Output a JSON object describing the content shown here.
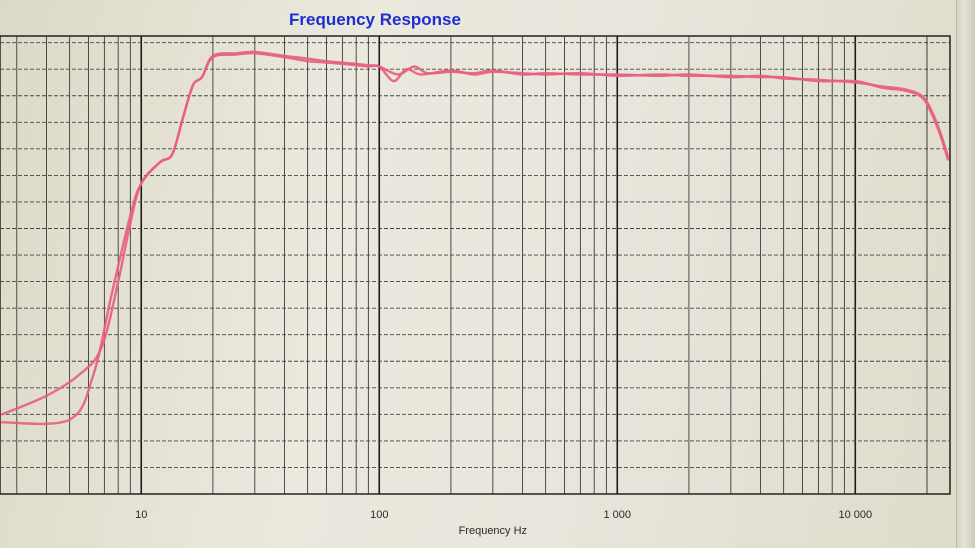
{
  "title": "Frequency Response",
  "colors": {
    "curve": "#e8607e",
    "title": "#1c2fd0",
    "grid": "#333333"
  },
  "chart_data": {
    "type": "line",
    "title": "Frequency Response",
    "xlabel": "Frequency Hz",
    "ylabel": "",
    "x_scale": "log",
    "xlim": [
      2.55,
      25000
    ],
    "ylim": [
      -16,
      1.25
    ],
    "y_unit_note": "unlabeled axis; y values are grid divisions relative to the top gridline",
    "x_tick_labels": [
      "10",
      "100",
      "1 000",
      "10 000"
    ],
    "x_tick_values": [
      10,
      100,
      1000,
      10000
    ],
    "grid": true,
    "legend": "none",
    "series": [
      {
        "values": [
          [
            2.6,
            -13.3
          ],
          [
            5,
            -13.2
          ],
          [
            6.3,
            -11.5
          ],
          [
            7.5,
            -8.5
          ],
          [
            9,
            -5.5
          ],
          [
            10,
            -4.3
          ],
          [
            12,
            -3.5
          ],
          [
            13.5,
            -3.2
          ],
          [
            15,
            -1.8
          ],
          [
            16.5,
            -0.6
          ],
          [
            18,
            -0.3
          ],
          [
            20,
            0.5
          ],
          [
            25,
            0.6
          ],
          [
            30,
            0.65
          ],
          [
            40,
            0.5
          ],
          [
            50,
            0.4
          ],
          [
            60,
            0.3
          ],
          [
            80,
            0.2
          ],
          [
            90,
            0.15
          ],
          [
            100,
            0.1
          ],
          [
            120,
            -0.2
          ],
          [
            140,
            0.1
          ],
          [
            160,
            -0.15
          ],
          [
            200,
            -0.1
          ],
          [
            250,
            -0.15
          ],
          [
            300,
            -0.05
          ],
          [
            400,
            -0.2
          ],
          [
            500,
            -0.15
          ],
          [
            700,
            -0.2
          ],
          [
            1000,
            -0.2
          ],
          [
            1500,
            -0.25
          ],
          [
            2000,
            -0.2
          ],
          [
            3000,
            -0.3
          ],
          [
            4000,
            -0.25
          ],
          [
            5000,
            -0.35
          ],
          [
            7000,
            -0.4
          ],
          [
            10000,
            -0.5
          ],
          [
            13000,
            -0.65
          ],
          [
            16000,
            -0.75
          ],
          [
            19000,
            -1.0
          ],
          [
            21000,
            -1.6
          ],
          [
            23000,
            -2.5
          ],
          [
            24500,
            -3.3
          ]
        ]
      },
      {
        "values": [
          [
            2.6,
            -13.0
          ],
          [
            4,
            -12.3
          ],
          [
            5.5,
            -11.5
          ],
          [
            6.8,
            -10.5
          ],
          [
            8,
            -8.0
          ],
          [
            9,
            -5.8
          ],
          [
            10,
            -4.3
          ],
          [
            12,
            -3.5
          ],
          [
            13.5,
            -3.2
          ],
          [
            15,
            -1.8
          ],
          [
            16.5,
            -0.6
          ],
          [
            18,
            -0.3
          ],
          [
            20,
            0.45
          ],
          [
            25,
            0.55
          ],
          [
            30,
            0.6
          ],
          [
            40,
            0.45
          ],
          [
            50,
            0.3
          ],
          [
            60,
            0.25
          ],
          [
            80,
            0.15
          ],
          [
            90,
            0.1
          ],
          [
            100,
            0.1
          ],
          [
            115,
            -0.45
          ],
          [
            130,
            0.0
          ],
          [
            150,
            -0.2
          ],
          [
            200,
            -0.05
          ],
          [
            250,
            -0.2
          ],
          [
            300,
            -0.1
          ],
          [
            400,
            -0.15
          ],
          [
            500,
            -0.2
          ],
          [
            700,
            -0.15
          ],
          [
            1000,
            -0.25
          ],
          [
            1500,
            -0.2
          ],
          [
            2000,
            -0.25
          ],
          [
            3000,
            -0.25
          ],
          [
            4000,
            -0.3
          ],
          [
            5000,
            -0.3
          ],
          [
            7000,
            -0.45
          ],
          [
            10000,
            -0.45
          ],
          [
            13000,
            -0.7
          ],
          [
            16000,
            -0.8
          ],
          [
            19000,
            -1.05
          ],
          [
            21000,
            -1.7
          ],
          [
            23000,
            -2.6
          ],
          [
            24500,
            -3.4
          ]
        ]
      }
    ]
  }
}
